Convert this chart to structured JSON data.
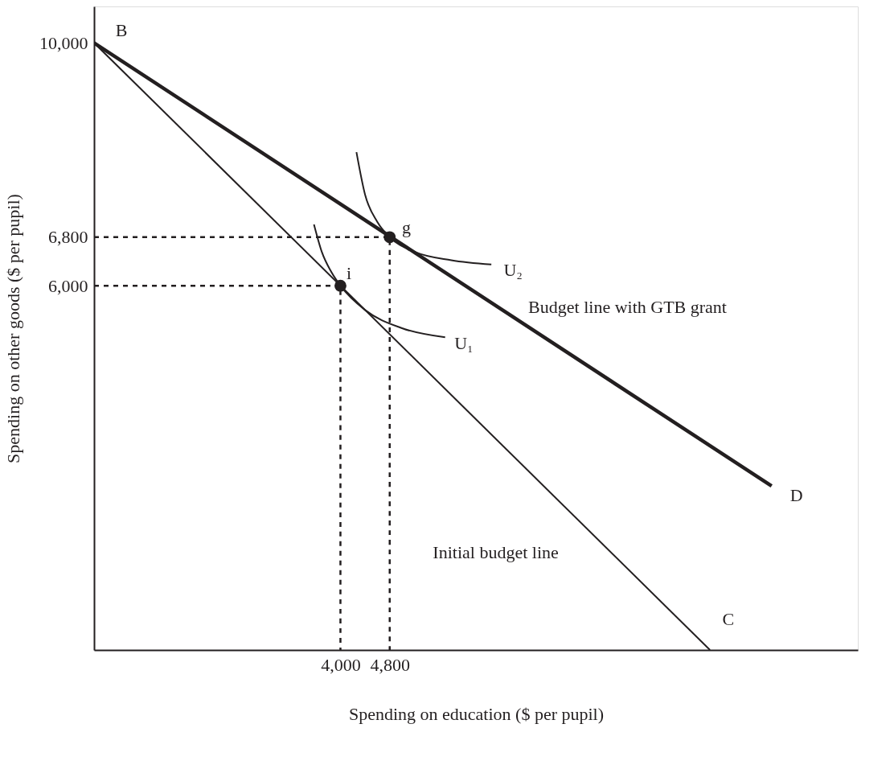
{
  "chart_data": {
    "type": "line",
    "xlabel": "Spending on education ($ per pupil)",
    "ylabel": "Spending on other goods ($ per pupil)",
    "xlim": [
      0,
      12400
    ],
    "ylim": [
      0,
      10600
    ],
    "xticks": [
      {
        "value": 4000,
        "label": "4,000"
      },
      {
        "value": 4800,
        "label": "4,800"
      }
    ],
    "yticks": [
      {
        "value": 6000,
        "label": "6,000"
      },
      {
        "value": 6800,
        "label": "6,800"
      },
      {
        "value": 10000,
        "label": "10,000"
      }
    ],
    "grid": false,
    "series": [
      {
        "color": "#231f20",
        "line_style": "solid",
        "x": [
          0,
          11000
        ],
        "values": [
          10000,
          2700
        ]
      },
      {
        "color": "#231f20",
        "line_style": "solid",
        "x": [
          0,
          10000
        ],
        "values": [
          10000,
          0
        ]
      },
      {
        "color": "#231f20",
        "line_style": "solid",
        "x": [
          4260,
          4400,
          4600,
          4800,
          5200,
          5800,
          6450
        ],
        "values": [
          8200,
          7500,
          7050,
          6800,
          6560,
          6420,
          6350
        ]
      },
      {
        "color": "#231f20",
        "line_style": "solid",
        "x": [
          3570,
          3700,
          3850,
          4000,
          4400,
          5000,
          5700
        ],
        "values": [
          7010,
          6550,
          6230,
          6000,
          5600,
          5300,
          5150
        ]
      },
      {
        "color": "#231f20",
        "line_style": "dashed",
        "x": [
          0,
          4000,
          4000
        ],
        "values": [
          6000,
          6000,
          0
        ]
      },
      {
        "color": "#231f20",
        "line_style": "dashed",
        "x": [
          0,
          4800,
          4800
        ],
        "values": [
          6800,
          6800,
          0
        ]
      },
      {
        "type": "scatter",
        "color": "#231f20",
        "marker": "circle",
        "x": [
          4000,
          4800
        ],
        "values": [
          6000,
          6800
        ]
      }
    ],
    "annotations": [
      "B",
      "g",
      "i",
      "U₂",
      "U₁",
      "Budget line with GTB grant",
      "Initial budget line",
      "C",
      "D"
    ]
  }
}
